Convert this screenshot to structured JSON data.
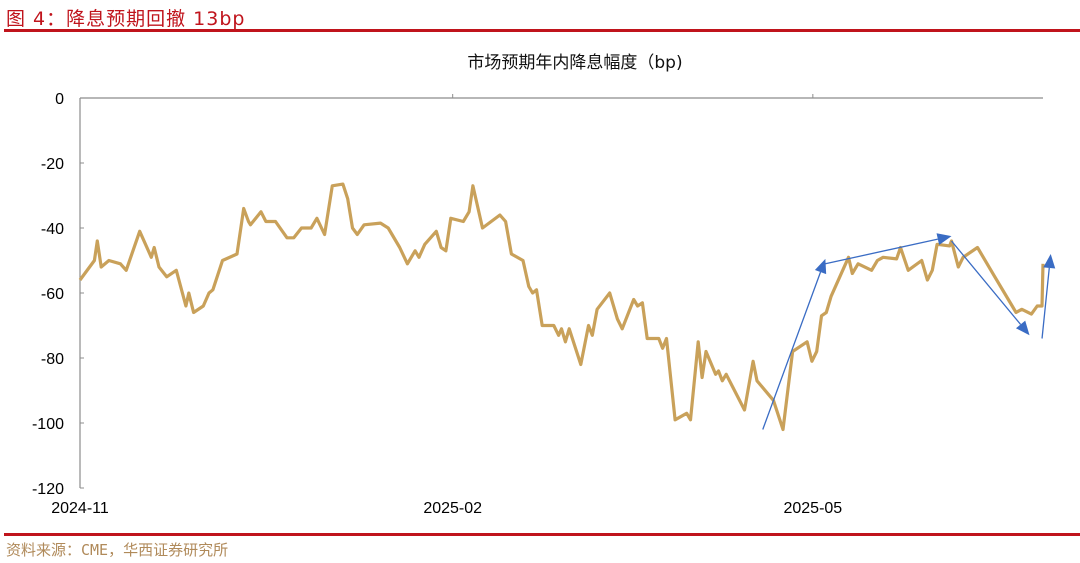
{
  "figure": {
    "title": "图 4：降息预期回撤 13bp",
    "source": "资料来源：CME，华西证券研究所"
  },
  "colors": {
    "accent_red": "#c0141c",
    "line": "#c9a15a",
    "arrow": "#3a6cc4",
    "axis": "#8c8c8c"
  },
  "chart_data": {
    "type": "line",
    "title": "市场预期年内降息幅度（bp)",
    "xlabel": "",
    "ylabel": "",
    "ylim": [
      -120,
      0
    ],
    "yticks": [
      0,
      -20,
      -40,
      -60,
      -80,
      -100,
      -120
    ],
    "xticks": [
      {
        "label": "2024-11",
        "pos": 0.0
      },
      {
        "label": "2025-02",
        "pos": 0.387
      },
      {
        "label": "2025-05",
        "pos": 0.761
      }
    ],
    "grid": false,
    "legend": null,
    "series": [
      {
        "name": "市场预期年内降息幅度",
        "points": [
          [
            0.0,
            -56
          ],
          [
            0.015,
            -50
          ],
          [
            0.018,
            -44
          ],
          [
            0.022,
            -52
          ],
          [
            0.03,
            -50
          ],
          [
            0.042,
            -51
          ],
          [
            0.048,
            -53
          ],
          [
            0.062,
            -41
          ],
          [
            0.074,
            -49
          ],
          [
            0.077,
            -46
          ],
          [
            0.082,
            -52
          ],
          [
            0.09,
            -55
          ],
          [
            0.1,
            -53
          ],
          [
            0.11,
            -64
          ],
          [
            0.113,
            -60
          ],
          [
            0.118,
            -66
          ],
          [
            0.128,
            -64
          ],
          [
            0.134,
            -60
          ],
          [
            0.138,
            -59
          ],
          [
            0.148,
            -50
          ],
          [
            0.163,
            -48
          ],
          [
            0.17,
            -34
          ],
          [
            0.175,
            -38
          ],
          [
            0.177,
            -39
          ],
          [
            0.188,
            -35
          ],
          [
            0.193,
            -38
          ],
          [
            0.203,
            -38
          ],
          [
            0.215,
            -43
          ],
          [
            0.222,
            -43
          ],
          [
            0.23,
            -40
          ],
          [
            0.24,
            -40
          ],
          [
            0.246,
            -37
          ],
          [
            0.254,
            -42
          ],
          [
            0.262,
            -27
          ],
          [
            0.273,
            -26.5
          ],
          [
            0.278,
            -31
          ],
          [
            0.283,
            -40
          ],
          [
            0.288,
            -42
          ],
          [
            0.295,
            -39
          ],
          [
            0.312,
            -38.5
          ],
          [
            0.32,
            -40
          ],
          [
            0.332,
            -46
          ],
          [
            0.34,
            -51
          ],
          [
            0.348,
            -47
          ],
          [
            0.352,
            -49
          ],
          [
            0.358,
            -45
          ],
          [
            0.37,
            -41
          ],
          [
            0.375,
            -46
          ],
          [
            0.38,
            -47
          ],
          [
            0.385,
            -37
          ],
          [
            0.398,
            -38
          ],
          [
            0.404,
            -35
          ],
          [
            0.408,
            -27
          ],
          [
            0.418,
            -40
          ],
          [
            0.436,
            -36
          ],
          [
            0.442,
            -38
          ],
          [
            0.448,
            -48
          ],
          [
            0.46,
            -50
          ],
          [
            0.466,
            -58
          ],
          [
            0.47,
            -60
          ],
          [
            0.474,
            -59
          ],
          [
            0.48,
            -70
          ],
          [
            0.492,
            -70
          ],
          [
            0.497,
            -73
          ],
          [
            0.5,
            -71
          ],
          [
            0.504,
            -75
          ],
          [
            0.508,
            -71
          ],
          [
            0.52,
            -82
          ],
          [
            0.528,
            -70
          ],
          [
            0.532,
            -73
          ],
          [
            0.537,
            -65
          ],
          [
            0.55,
            -60
          ],
          [
            0.558,
            -68
          ],
          [
            0.563,
            -71
          ],
          [
            0.575,
            -62
          ],
          [
            0.579,
            -64
          ],
          [
            0.584,
            -63
          ],
          [
            0.589,
            -74
          ],
          [
            0.601,
            -74
          ],
          [
            0.605,
            -77
          ],
          [
            0.609,
            -74
          ],
          [
            0.618,
            -99
          ],
          [
            0.63,
            -97
          ],
          [
            0.634,
            -99
          ],
          [
            0.642,
            -75
          ],
          [
            0.646,
            -86
          ],
          [
            0.65,
            -78
          ],
          [
            0.66,
            -85
          ],
          [
            0.663,
            -84
          ],
          [
            0.667,
            -87
          ],
          [
            0.671,
            -85
          ],
          [
            0.69,
            -96
          ],
          [
            0.699,
            -81
          ],
          [
            0.703,
            -87
          ],
          [
            0.72,
            -93
          ],
          [
            0.73,
            -102
          ],
          [
            0.74,
            -78
          ],
          [
            0.755,
            -75
          ],
          [
            0.76,
            -81
          ],
          [
            0.765,
            -78
          ],
          [
            0.77,
            -67
          ],
          [
            0.775,
            -66
          ],
          [
            0.78,
            -61
          ],
          [
            0.798,
            -49
          ],
          [
            0.802,
            -54
          ],
          [
            0.808,
            -51
          ],
          [
            0.822,
            -53
          ],
          [
            0.828,
            -50
          ],
          [
            0.834,
            -49
          ],
          [
            0.848,
            -49.5
          ],
          [
            0.852,
            -46
          ],
          [
            0.86,
            -53
          ],
          [
            0.874,
            -50
          ],
          [
            0.88,
            -56
          ],
          [
            0.885,
            -53
          ],
          [
            0.89,
            -45
          ],
          [
            0.903,
            -45.5
          ],
          [
            0.905,
            -44
          ],
          [
            0.912,
            -52
          ],
          [
            0.917,
            -49
          ],
          [
            0.932,
            -46
          ],
          [
            0.95,
            -55
          ],
          [
            0.968,
            -64
          ],
          [
            0.972,
            -66
          ],
          [
            0.978,
            -65
          ],
          [
            0.988,
            -66.5
          ],
          [
            0.994,
            -64
          ],
          [
            0.999,
            -64
          ],
          [
            1.0,
            -51
          ]
        ]
      }
    ],
    "annotations": [
      {
        "type": "arrow",
        "from": [
          0.709,
          -102
        ],
        "to": [
          0.774,
          -49.5
        ]
      },
      {
        "type": "arrow",
        "from": [
          0.774,
          -51
        ],
        "to": [
          0.905,
          -42.5
        ]
      },
      {
        "type": "arrow",
        "from": [
          0.905,
          -44
        ],
        "to": [
          0.986,
          -73
        ]
      },
      {
        "type": "arrow",
        "from": [
          0.999,
          -74
        ],
        "to": [
          1.008,
          -48
        ]
      }
    ]
  }
}
